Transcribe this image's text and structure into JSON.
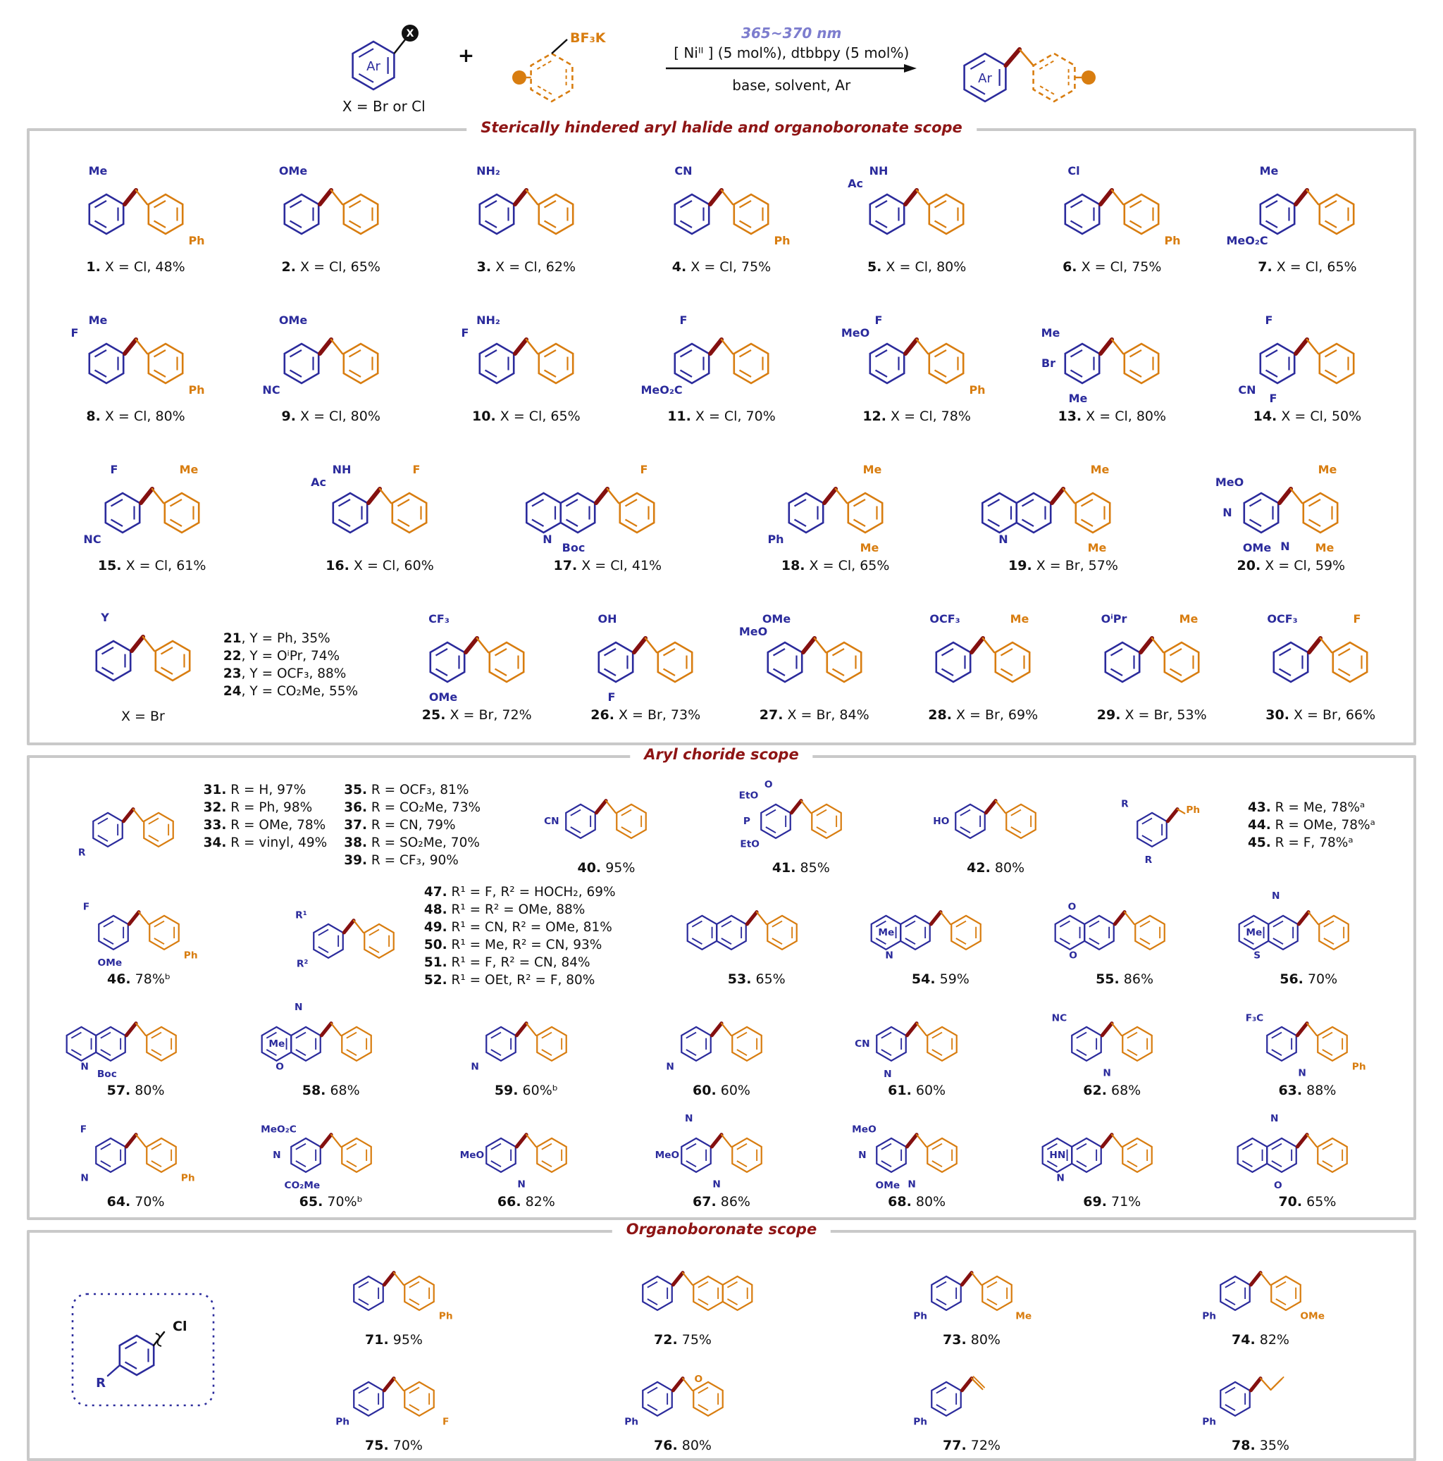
{
  "colors": {
    "aryl_blue": "#2b2b9c",
    "boronate_orange": "#d87d10",
    "benzylic_maroon": "#841010",
    "section_title_red": "#8e1515",
    "wavelength_purple": "#7d7dce",
    "box_border_gray": "#c9c9c9"
  },
  "scheme": {
    "ar": "Ar",
    "x_circle": "X",
    "x_note": "X = Br or Cl",
    "plus": "+",
    "bf3k": "BF₃K",
    "wavelength": "365~370 nm",
    "cond_top": "[ Niᴵᴵ ] (5 mol%), dtbbpy (5 mol%)",
    "cond_bottom": "base, solvent, Ar"
  },
  "sections": [
    {
      "title": "Sterically hindered aryl halide and organoboronate scope",
      "rows": [
        [
          {
            "n": "1.",
            "y": "X = Cl, 48%",
            "bs": [
              "Me@t"
            ],
            "os": [
              "Ph@br"
            ]
          },
          {
            "n": "2.",
            "y": "X = Cl, 65%",
            "bs": [
              "OMe@t"
            ]
          },
          {
            "n": "3.",
            "y": "X = Cl, 62%",
            "bs": [
              "NH₂@t"
            ]
          },
          {
            "n": "4.",
            "y": "X = Cl, 75%",
            "bs": [
              "CN@t"
            ],
            "os": [
              "Ph@br"
            ]
          },
          {
            "n": "5.",
            "y": "X = Cl, 80%",
            "bs": [
              "Ac@tl",
              "NH@t"
            ]
          },
          {
            "n": "6.",
            "y": "X = Cl, 75%",
            "bs": [
              "Cl@t"
            ],
            "os": [
              "Ph@br"
            ]
          },
          {
            "n": "7.",
            "y": "X = Cl, 65%",
            "bs": [
              "Me@t",
              "MeO₂C@bl"
            ]
          }
        ],
        [
          {
            "n": "8.",
            "y": "X = Cl, 80%",
            "bs": [
              "Me@t",
              "F@tl"
            ],
            "os": [
              "Ph@br"
            ]
          },
          {
            "n": "9.",
            "y": "X = Cl, 80%",
            "bs": [
              "OMe@t",
              "NC@bl"
            ]
          },
          {
            "n": "10.",
            "y": "X = Cl, 65%",
            "bs": [
              "NH₂@t",
              "F@tl"
            ]
          },
          {
            "n": "11.",
            "y": "X = Cl, 70%",
            "bs": [
              "F@t",
              "MeO₂C@bl"
            ]
          },
          {
            "n": "12.",
            "y": "X = Cl, 78%",
            "bs": [
              "F@t",
              "MeO@tl"
            ],
            "os": [
              "Ph@br"
            ]
          },
          {
            "n": "13.",
            "y": "X = Cl, 80%",
            "bs": [
              "Me@tl",
              "Br@l",
              "Me@b"
            ]
          },
          {
            "n": "14.",
            "y": "X = Cl, 50%",
            "bs": [
              "F@t",
              "CN@bl",
              "F@b"
            ]
          }
        ],
        [
          {
            "n": "15.",
            "y": "X = Cl, 61%",
            "bs": [
              "F@t",
              "NC@bl"
            ],
            "os": [
              "Me@t"
            ]
          },
          {
            "n": "16.",
            "y": "X = Cl, 60%",
            "bs": [
              "Ac@tl",
              "NH@t"
            ],
            "os": [
              "F@t"
            ]
          },
          {
            "n": "17.",
            "y": "X = Cl, 41%",
            "bn": true,
            "bs": [
              "N@bl",
              "Boc@b"
            ],
            "os": [
              "F@t"
            ]
          },
          {
            "n": "18.",
            "y": "X = Cl, 65%",
            "bs": [
              "Ph@bl"
            ],
            "os": [
              "Me@t",
              "Me@b"
            ]
          },
          {
            "n": "19.",
            "y": "X = Br, 57%",
            "bn": true,
            "bs": [
              "N@bl"
            ],
            "os": [
              "Me@t",
              "Me@b"
            ]
          },
          {
            "n": "20.",
            "y": "X = Cl, 59%",
            "bs": [
              "MeO@tl",
              "N@l",
              "N@br",
              "OMe@b"
            ],
            "os": [
              "Me@t",
              "Me@b"
            ]
          }
        ],
        [
          {
            "flex": 2.1,
            "bs": [
              "Y@t"
            ],
            "note": "X = Br",
            "lines": [
              {
                "b": "21",
                "t": ", Y = Ph, 35%"
              },
              {
                "b": "22",
                "t": ", Y = OⁱPr, 74%"
              },
              {
                "b": "23",
                "t": ", Y = OCF₃, 88%"
              },
              {
                "b": "24",
                "t": ", Y = CO₂Me, 55%"
              }
            ]
          },
          {
            "n": "25.",
            "y": "X = Br, 72%",
            "bs": [
              "CF₃@t",
              "OMe@b"
            ]
          },
          {
            "n": "26.",
            "y": "X = Br, 73%",
            "bs": [
              "OH@t",
              "F@b"
            ]
          },
          {
            "n": "27.",
            "y": "X = Br, 84%",
            "bs": [
              "OMe@t",
              "MeO@tl"
            ]
          },
          {
            "n": "28.",
            "y": "X = Br, 69%",
            "bs": [
              "OCF₃@t"
            ],
            "os": [
              "Me@t"
            ]
          },
          {
            "n": "29.",
            "y": "X = Br, 53%",
            "bs": [
              "OⁱPr@t"
            ],
            "os": [
              "Me@t"
            ]
          },
          {
            "n": "30.",
            "y": "X = Br, 66%",
            "bs": [
              "OCF₃@t"
            ],
            "os": [
              "F@t"
            ]
          }
        ]
      ]
    },
    {
      "title": "Aryl choride scope",
      "rows": [
        [
          {
            "flex": 3.0,
            "bs": [
              "R@bl"
            ],
            "cols": [
              [
                {
                  "b": "31.",
                  "t": " R = H, 97%"
                },
                {
                  "b": "32.",
                  "t": " R = Ph, 98%"
                },
                {
                  "b": "33.",
                  "t": " R = OMe, 78%"
                },
                {
                  "b": "34.",
                  "t": " R = vinyl, 49%"
                }
              ],
              [
                {
                  "b": "35.",
                  "t": " R = OCF₃, 81%"
                },
                {
                  "b": "36.",
                  "t": " R = CO₂Me, 73%"
                },
                {
                  "b": "37.",
                  "t": " R = CN, 79%"
                },
                {
                  "b": "38.",
                  "t": " R = SO₂Me, 70%"
                },
                {
                  "b": "39.",
                  "t": " R = CF₃, 90%"
                }
              ]
            ]
          },
          {
            "flex": 1.15,
            "n": "40.",
            "y": "95%",
            "bs": [
              "CN@l"
            ]
          },
          {
            "flex": 1.3,
            "n": "41.",
            "y": "85%",
            "bs": [
              "EtO@tl",
              "O@t",
              "P@l",
              "EtO@bl"
            ]
          },
          {
            "flex": 1.15,
            "n": "42.",
            "y": "80%",
            "bs": [
              "HO@l"
            ]
          },
          {
            "flex": 2.0,
            "v": "ph",
            "bs": [
              "R@tl",
              "R@b"
            ],
            "os": [
              "Ph@lnk"
            ],
            "lines": [
              {
                "b": "43.",
                "t": " R = Me, 78%ᵃ"
              },
              {
                "b": "44.",
                "t": " R = OMe, 78%ᵃ"
              },
              {
                "b": "45.",
                "t": " R = F, 78%ᵃ"
              }
            ]
          }
        ],
        [
          {
            "flex": 1.15,
            "n": "46.",
            "y": "78%ᵇ",
            "bs": [
              "F@tl",
              "OMe@b"
            ],
            "os": [
              "Ph@br"
            ]
          },
          {
            "flex": 2.45,
            "bs": [
              "R¹@tl",
              "R²@bl"
            ],
            "lines": [
              {
                "b": "47.",
                "t": " R¹ = F,  R² = HOCH₂, 69%"
              },
              {
                "b": "48.",
                "t": " R¹ = R² = OMe, 88%"
              },
              {
                "b": "49.",
                "t": " R¹ = CN,  R² = OMe, 81%"
              },
              {
                "b": "50.",
                "t": " R¹ = Me,  R² = CN, 93%"
              },
              {
                "b": "51.",
                "t": " R¹ = F,  R² = CN, 84%"
              },
              {
                "b": "52.",
                "t": " R¹ = OEt,  R² = F, 80%"
              }
            ]
          },
          {
            "n": "53.",
            "y": "65%",
            "bn": true
          },
          {
            "flex": 1.1,
            "n": "54.",
            "y": "59%",
            "bn": true,
            "bs": [
              "Me@l",
              "N@bl"
            ]
          },
          {
            "n": "55.",
            "y": "86%",
            "bn": true,
            "bs": [
              "O@tl",
              "O@bl"
            ]
          },
          {
            "flex": 1.1,
            "n": "56.",
            "y": "70%",
            "bn": true,
            "bs": [
              "Me@l",
              "N@t",
              "S@bl"
            ]
          }
        ],
        [
          {
            "n": "57.",
            "y": "80%",
            "bn": true,
            "bs": [
              "N@bl",
              "Boc@b"
            ]
          },
          {
            "n": "58.",
            "y": "68%",
            "bn": true,
            "bs": [
              "Me@l",
              "N@t",
              "O@bl"
            ]
          },
          {
            "n": "59.",
            "y": "60%ᵇ",
            "bs": [
              "N@bl"
            ]
          },
          {
            "n": "60.",
            "y": "60%",
            "bs": [
              "N@bl"
            ]
          },
          {
            "n": "61.",
            "y": "60%",
            "bs": [
              "CN@l",
              "N@b"
            ]
          },
          {
            "n": "62.",
            "y": "68%",
            "bs": [
              "NC@tl",
              "N@br"
            ]
          },
          {
            "n": "63.",
            "y": "88%",
            "bs": [
              "F₃C@tl",
              "N@br"
            ],
            "os": [
              "Ph@br"
            ]
          }
        ],
        [
          {
            "n": "64.",
            "y": "70%",
            "bs": [
              "F@tl",
              "N@bl"
            ],
            "os": [
              "Ph@br"
            ]
          },
          {
            "n": "65.",
            "y": "70%ᵇ",
            "bs": [
              "MeO₂C@tl",
              "N@l",
              "CO₂Me@b"
            ]
          },
          {
            "n": "66.",
            "y": "82%",
            "bs": [
              "MeO@l",
              "N@br"
            ]
          },
          {
            "n": "67.",
            "y": "86%",
            "bs": [
              "MeO@l",
              "N@t",
              "N@br"
            ]
          },
          {
            "n": "68.",
            "y": "80%",
            "bs": [
              "MeO@tl",
              "N@l",
              "N@br",
              "OMe@b"
            ]
          },
          {
            "n": "69.",
            "y": "71%",
            "bn": true,
            "bs": [
              "HN@l",
              "N@bl"
            ]
          },
          {
            "n": "70.",
            "y": "65%",
            "bn": true,
            "bs": [
              "N@t",
              "O@b"
            ]
          }
        ]
      ]
    },
    {
      "title": "Organoboronate scope",
      "box": {
        "r": "R",
        "cl": "Cl"
      },
      "rows": [
        [
          {
            "n": "71.",
            "y": "95%",
            "os": [
              "Ph@br"
            ]
          },
          {
            "n": "72.",
            "y": "75%",
            "on": true
          },
          {
            "n": "73.",
            "y": "80%",
            "bs": [
              "Ph@bl"
            ],
            "os": [
              "Me@br"
            ]
          },
          {
            "n": "74.",
            "y": "82%",
            "bs": [
              "Ph@bl"
            ],
            "os": [
              "OMe@br"
            ]
          }
        ],
        [
          {
            "n": "75.",
            "y": "70%",
            "bs": [
              "Ph@bl"
            ],
            "os": [
              "F@br"
            ]
          },
          {
            "n": "76.",
            "y": "80%",
            "bs": [
              "Ph@bl"
            ],
            "os": [
              "O@lnk"
            ]
          },
          {
            "n": "77.",
            "y": "72%",
            "v": "chain",
            "bs": [
              "Ph@bl"
            ]
          },
          {
            "n": "78.",
            "y": "35%",
            "v": "chain2",
            "bs": [
              "Ph@bl"
            ]
          }
        ]
      ]
    }
  ]
}
